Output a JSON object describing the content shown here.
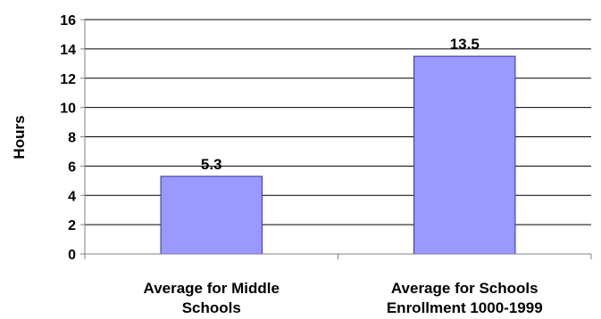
{
  "chart_data": {
    "type": "bar",
    "categories": [
      [
        "Average for Middle",
        "Schools"
      ],
      [
        "Average for Schools",
        "Enrollment 1000-1999"
      ]
    ],
    "values": [
      5.3,
      13.5
    ],
    "value_labels": [
      "5.3",
      "13.5"
    ],
    "title": "",
    "xlabel": "",
    "ylabel": "Hours",
    "ylim": [
      0,
      16
    ],
    "yticks": [
      0,
      2,
      4,
      6,
      8,
      10,
      12,
      14,
      16
    ],
    "ytick_labels": [
      "0",
      "2",
      "4",
      "6",
      "8",
      "10",
      "12",
      "14",
      "16"
    ],
    "grid": true,
    "legend": "none",
    "colors": {
      "bar_fill": "#9999ff",
      "bar_stroke": "#333399",
      "grid": "#000000",
      "axis": "#808080"
    }
  }
}
